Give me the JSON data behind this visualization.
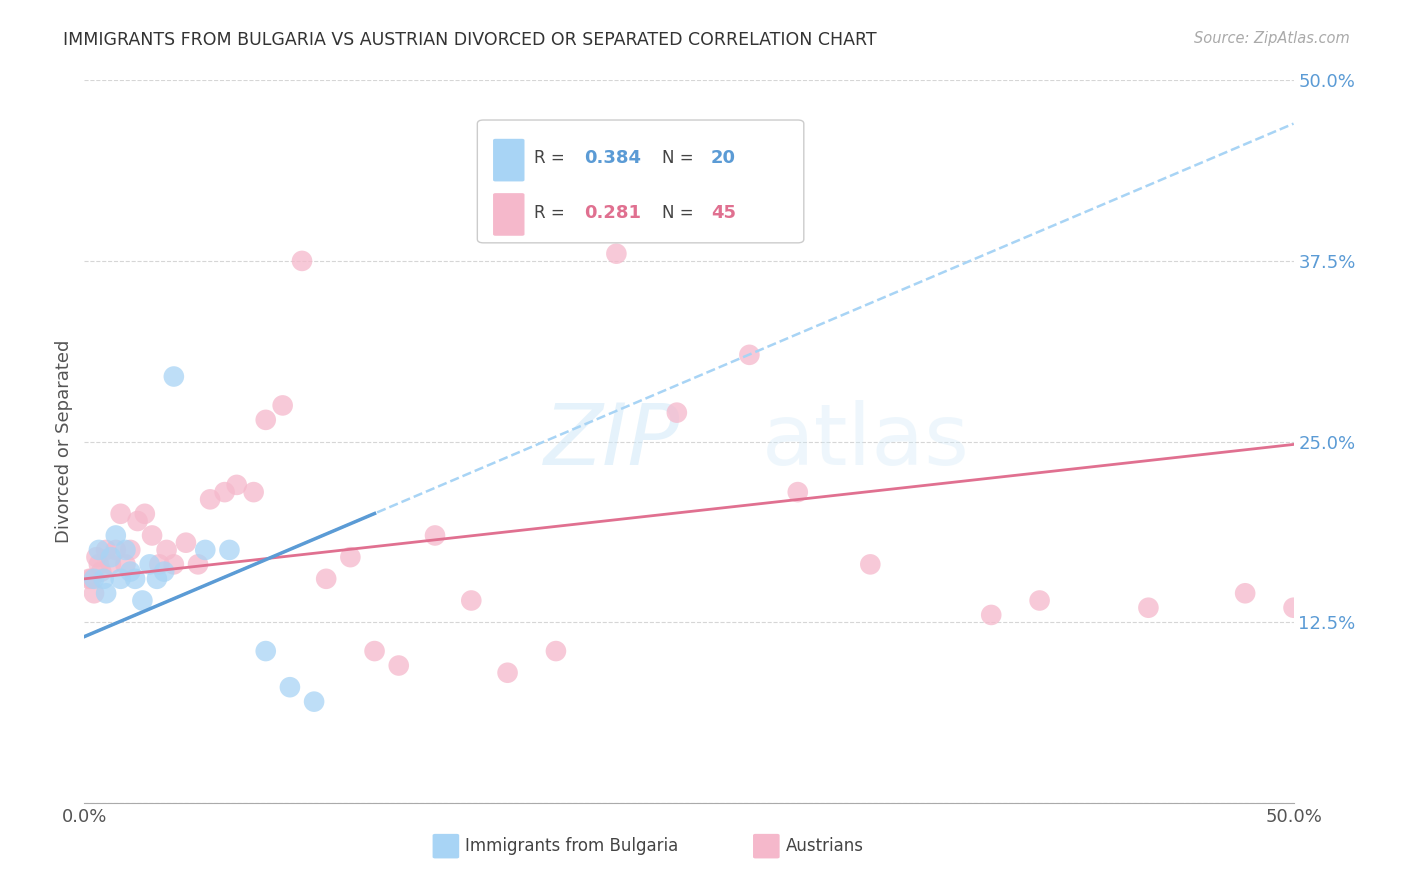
{
  "title": "IMMIGRANTS FROM BULGARIA VS AUSTRIAN DIVORCED OR SEPARATED CORRELATION CHART",
  "source": "Source: ZipAtlas.com",
  "ylabel": "Divorced or Separated",
  "bg_color": "#ffffff",
  "grid_color": "#cccccc",
  "watermark_zip": "ZIP",
  "watermark_atlas": "atlas",
  "blue_color": "#a8d4f5",
  "pink_color": "#f5b8cb",
  "blue_line_color": "#5b9bd5",
  "pink_line_color": "#e07090",
  "blue_dashed_color": "#a8d4f5",
  "right_axis_color": "#5b9bd5",
  "legend_r1_label": "R = ",
  "legend_r1_val": "0.384",
  "legend_n1_label": "N = ",
  "legend_n1_val": "20",
  "legend_r2_label": "R = ",
  "legend_r2_val": "0.281",
  "legend_n2_label": "N = ",
  "legend_n2_val": "45",
  "xlim": [
    0.0,
    0.5
  ],
  "ylim": [
    0.0,
    0.5
  ],
  "yticks": [
    0.0,
    0.125,
    0.25,
    0.375,
    0.5
  ],
  "ytick_labels": [
    "",
    "12.5%",
    "25.0%",
    "37.5%",
    "50.0%"
  ],
  "bottom_legend_label1": "Immigrants from Bulgaria",
  "bottom_legend_label2": "Austrians",
  "bulgaria_x": [
    0.004,
    0.006,
    0.008,
    0.009,
    0.011,
    0.013,
    0.015,
    0.017,
    0.019,
    0.021,
    0.024,
    0.027,
    0.03,
    0.033,
    0.037,
    0.05,
    0.06,
    0.075,
    0.085,
    0.095
  ],
  "bulgaria_y": [
    0.155,
    0.175,
    0.155,
    0.145,
    0.17,
    0.185,
    0.155,
    0.175,
    0.16,
    0.155,
    0.14,
    0.165,
    0.155,
    0.16,
    0.295,
    0.175,
    0.175,
    0.105,
    0.08,
    0.07
  ],
  "austrian_x": [
    0.002,
    0.003,
    0.004,
    0.005,
    0.006,
    0.007,
    0.009,
    0.011,
    0.013,
    0.015,
    0.017,
    0.019,
    0.022,
    0.025,
    0.028,
    0.031,
    0.034,
    0.037,
    0.042,
    0.047,
    0.052,
    0.058,
    0.063,
    0.07,
    0.075,
    0.082,
    0.09,
    0.1,
    0.11,
    0.12,
    0.13,
    0.145,
    0.16,
    0.175,
    0.195,
    0.22,
    0.245,
    0.275,
    0.295,
    0.325,
    0.375,
    0.395,
    0.44,
    0.48,
    0.5
  ],
  "austrian_y": [
    0.155,
    0.155,
    0.145,
    0.17,
    0.165,
    0.16,
    0.175,
    0.165,
    0.175,
    0.2,
    0.165,
    0.175,
    0.195,
    0.2,
    0.185,
    0.165,
    0.175,
    0.165,
    0.18,
    0.165,
    0.21,
    0.215,
    0.22,
    0.215,
    0.265,
    0.275,
    0.375,
    0.155,
    0.17,
    0.105,
    0.095,
    0.185,
    0.14,
    0.09,
    0.105,
    0.38,
    0.27,
    0.31,
    0.215,
    0.165,
    0.13,
    0.14,
    0.135,
    0.145,
    0.135
  ],
  "blue_trend_x0": 0.0,
  "blue_trend_x1": 0.5,
  "blue_trend_y0": 0.115,
  "blue_trend_y1": 0.47,
  "pink_trend_x0": 0.0,
  "pink_trend_x1": 0.5,
  "pink_trend_y0": 0.155,
  "pink_trend_y1": 0.248
}
